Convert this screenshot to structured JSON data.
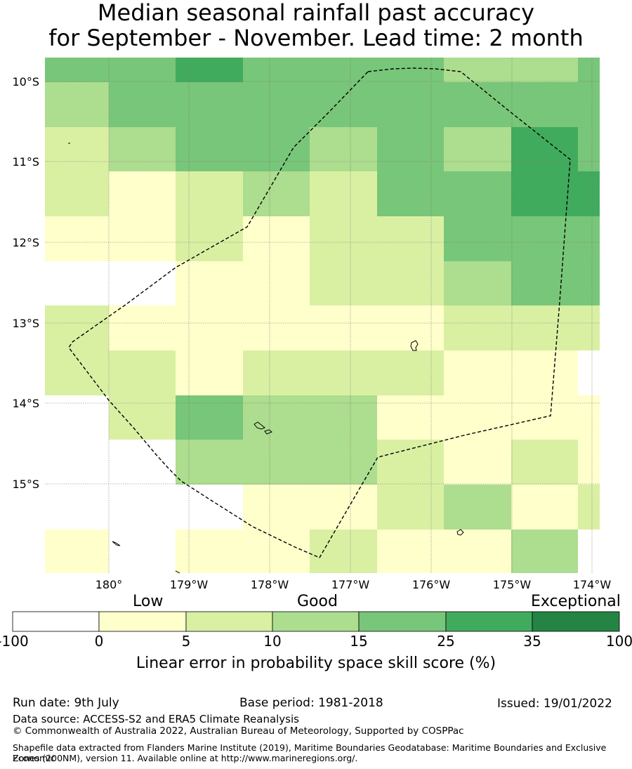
{
  "title_line1": "Median seasonal rainfall past accuracy",
  "title_line2": "for September - November. Lead time: 2 month",
  "map": {
    "lat_labels": [
      "10°S",
      "11°S",
      "12°S",
      "13°S",
      "14°S",
      "15°S"
    ],
    "lon_labels": [
      "180°",
      "179°W",
      "178°W",
      "177°W",
      "176°W",
      "175°W",
      "174°W"
    ],
    "legend": {
      "category_labels": [
        "Low",
        "Good",
        "Exceptional"
      ],
      "bin_edges": [
        "-100",
        "0",
        "5",
        "10",
        "15",
        "25",
        "35",
        "100"
      ],
      "bin_colors": [
        "#ffffff",
        "#ffffcc",
        "#d9f0a3",
        "#addd8e",
        "#78c679",
        "#41ab5d",
        "#238443"
      ],
      "title": "Linear error in probability space skill score (%)"
    },
    "grid_colors": [
      [
        "#78c679",
        "#78c679",
        "#41ab5d",
        "#78c679",
        "#78c679",
        "#78c679",
        "#addd8e",
        "#addd8e",
        "#78c679"
      ],
      [
        "#addd8e",
        "#78c679",
        "#78c679",
        "#78c679",
        "#78c679",
        "#78c679",
        "#78c679",
        "#78c679",
        "#78c679"
      ],
      [
        "#d9f0a3",
        "#addd8e",
        "#78c679",
        "#78c679",
        "#addd8e",
        "#78c679",
        "#addd8e",
        "#41ab5d",
        "#78c679"
      ],
      [
        "#d9f0a3",
        "#ffffcc",
        "#d9f0a3",
        "#addd8e",
        "#d9f0a3",
        "#78c679",
        "#78c679",
        "#41ab5d",
        "#41ab5d"
      ],
      [
        "#ffffcc",
        "#ffffcc",
        "#d9f0a3",
        "#ffffcc",
        "#d9f0a3",
        "#d9f0a3",
        "#78c679",
        "#78c679",
        "#78c679"
      ],
      [
        "#ffffff",
        "#ffffff",
        "#ffffcc",
        "#ffffcc",
        "#d9f0a3",
        "#d9f0a3",
        "#addd8e",
        "#78c679",
        "#78c679"
      ],
      [
        "#d9f0a3",
        "#ffffcc",
        "#ffffcc",
        "#ffffcc",
        "#ffffcc",
        "#ffffcc",
        "#d9f0a3",
        "#d9f0a3",
        "#d9f0a3"
      ],
      [
        "#d9f0a3",
        "#d9f0a3",
        "#ffffcc",
        "#d9f0a3",
        "#d9f0a3",
        "#d9f0a3",
        "#ffffcc",
        "#ffffcc",
        "#ffffff"
      ],
      [
        "#ffffff",
        "#d9f0a3",
        "#78c679",
        "#addd8e",
        "#addd8e",
        "#ffffcc",
        "#ffffcc",
        "#ffffcc",
        "#ffffcc"
      ],
      [
        "#ffffff",
        "#ffffff",
        "#addd8e",
        "#addd8e",
        "#addd8e",
        "#d9f0a3",
        "#ffffcc",
        "#d9f0a3",
        "#ffffcc"
      ],
      [
        "#ffffff",
        "#ffffff",
        "#ffffff",
        "#ffffcc",
        "#ffffcc",
        "#d9f0a3",
        "#addd8e",
        "#ffffcc",
        "#d9f0a3"
      ],
      [
        "#ffffcc",
        "#ffffff",
        "#ffffcc",
        "#ffffcc",
        "#d9f0a3",
        "#ffffcc",
        "#ffffcc",
        "#addd8e",
        "#ffffff"
      ]
    ]
  },
  "footer": {
    "run_date": "Run date: 9th July",
    "base_period": "Base period: 1981-2018",
    "issued": "Issued: 19/01/2022",
    "data_source": "Data source: ACCESS-S2 and ERA5 Climate Reanalysis",
    "copyright": "© Commonwealth of Australia 2022, Australian Bureau of Meteorology, Supported by COSPPac",
    "shapefile_line1": "Shapefile data extracted from Flanders Marine Institute (2019), Maritime Boundaries Geodatabase: Maritime Boundaries and Exclusive Economic",
    "shapefile_line2": "Zones (200NM), version 11. Available online at http://www.marineregions.org/."
  }
}
